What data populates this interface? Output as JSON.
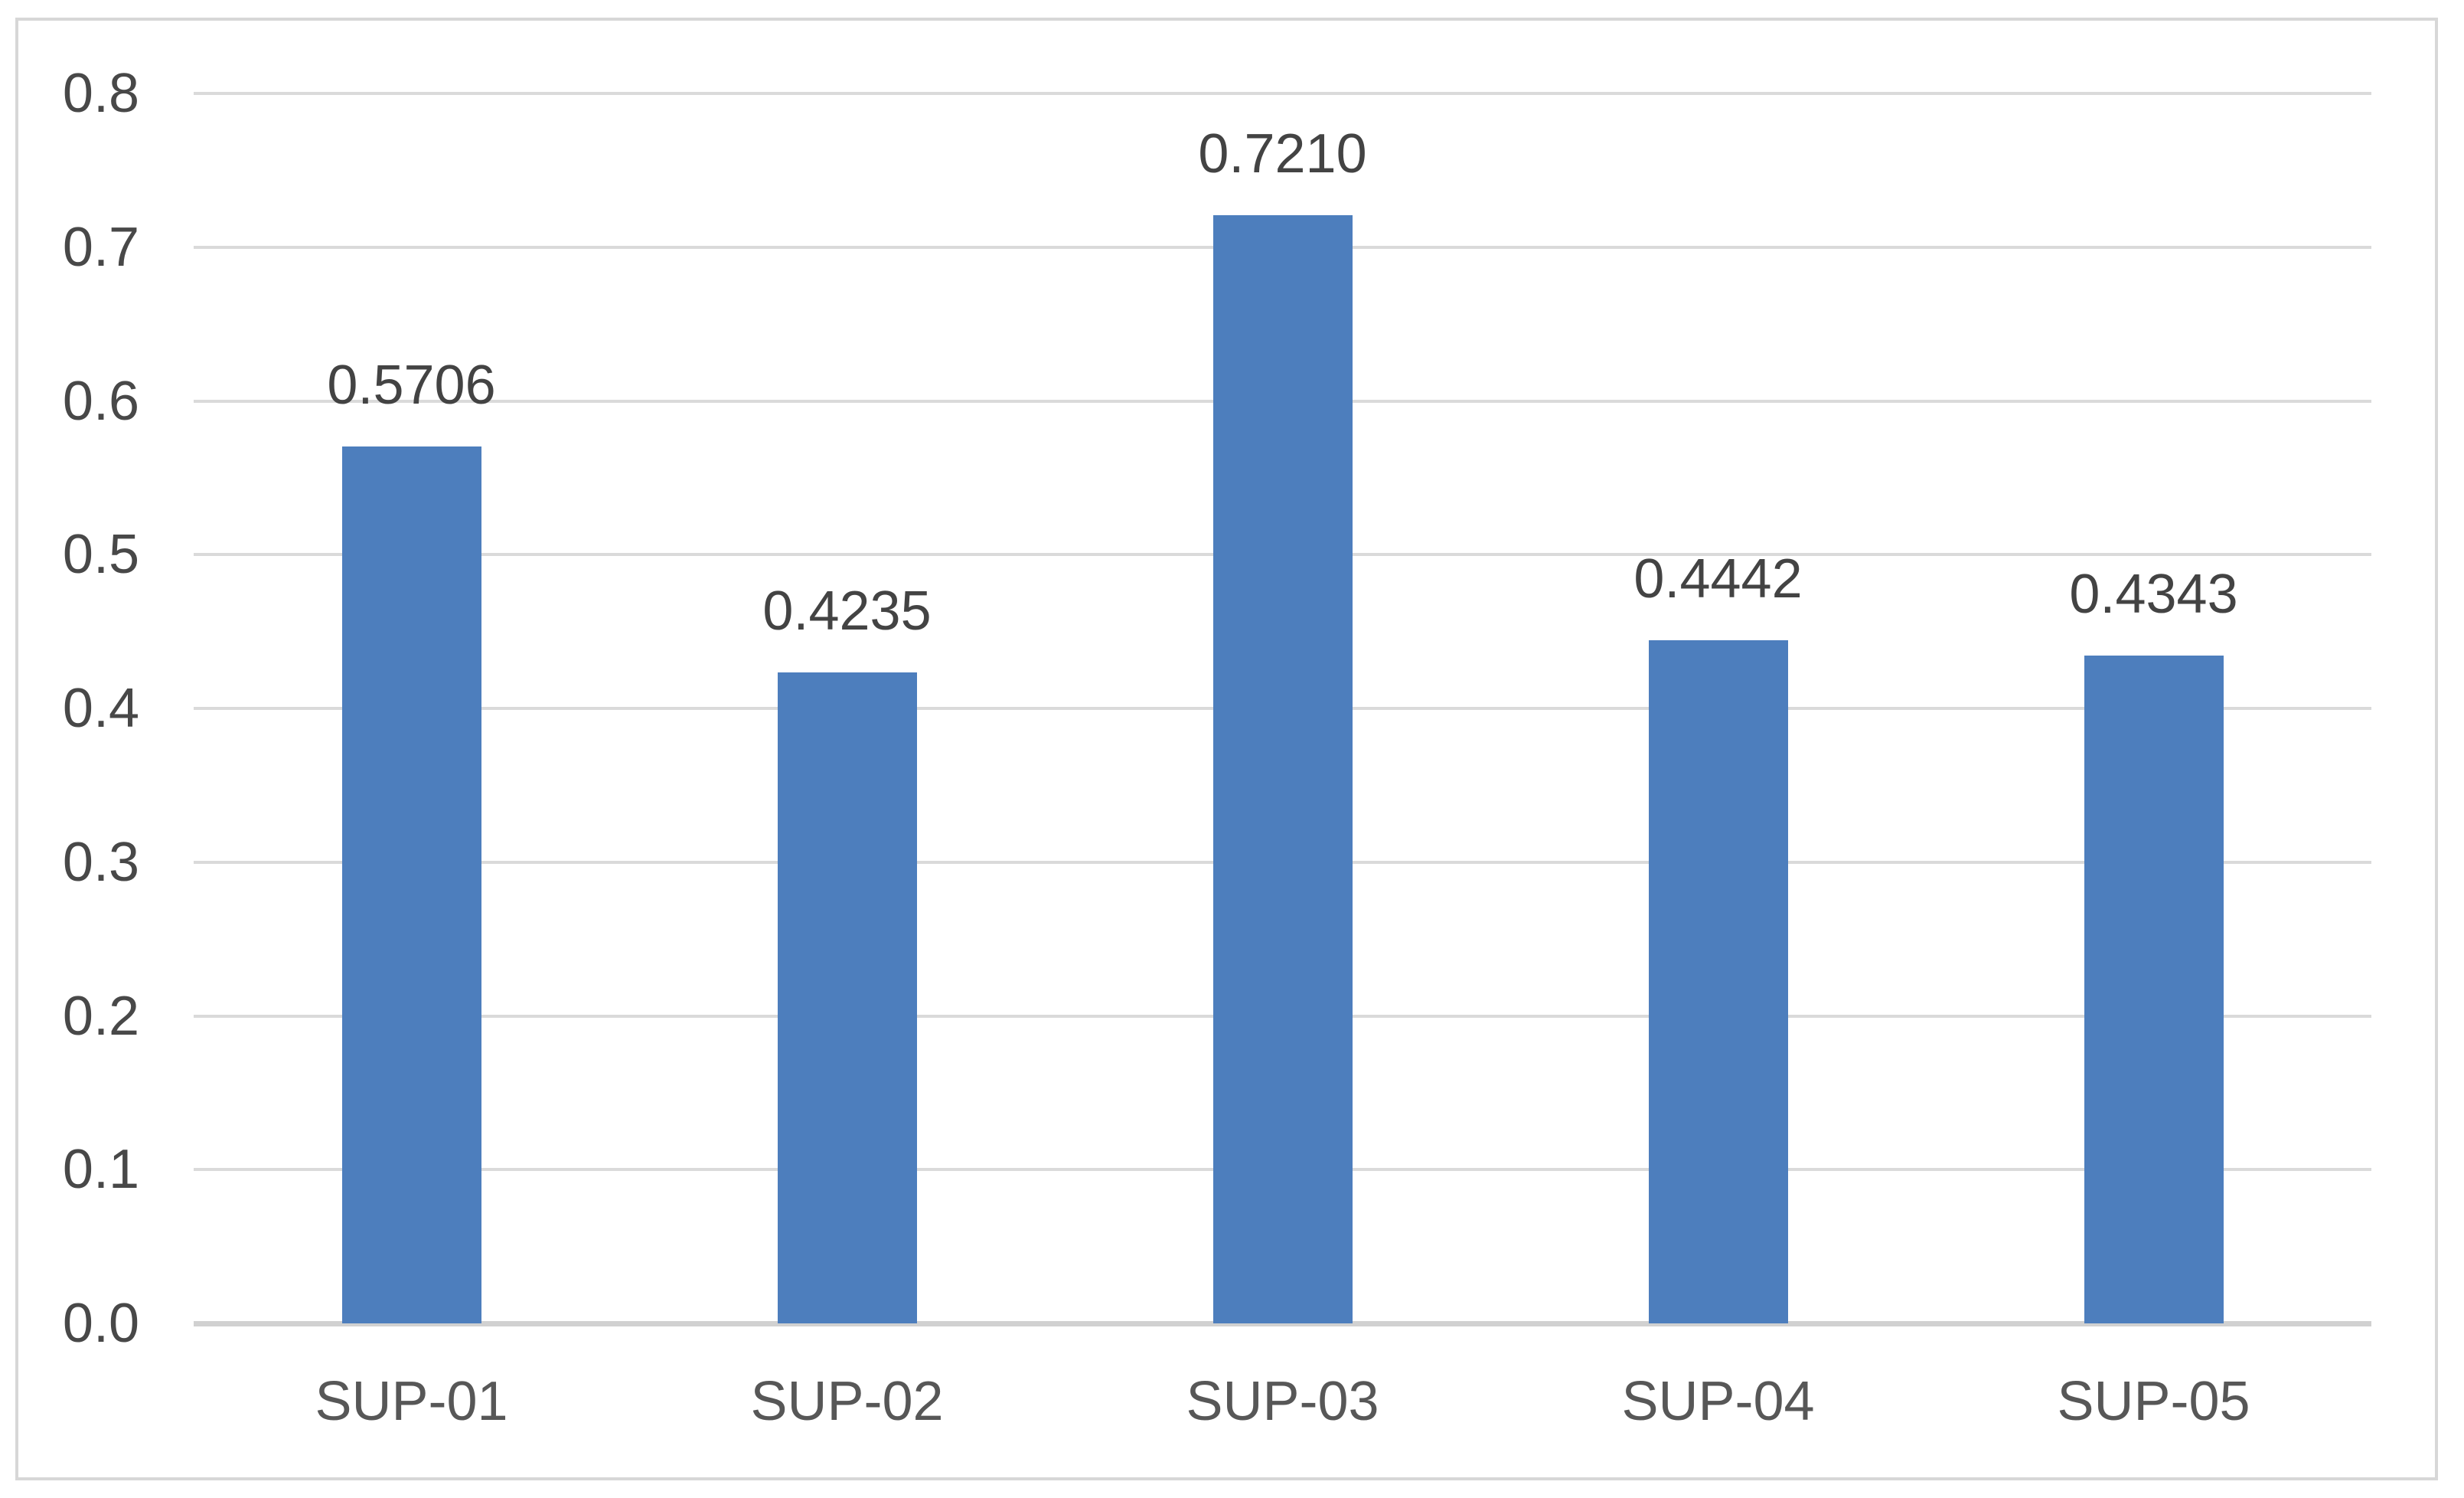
{
  "chart_data": {
    "type": "bar",
    "title": "",
    "xlabel": "",
    "ylabel": "",
    "categories": [
      "SUP-01",
      "SUP-02",
      "SUP-03",
      "SUP-04",
      "SUP-05"
    ],
    "values": [
      0.5706,
      0.4235,
      0.721,
      0.4442,
      0.4343
    ],
    "value_labels": [
      "0.5706",
      "0.4235",
      "0.7210",
      "0.4442",
      "0.4343"
    ],
    "ylim": [
      0.0,
      0.8
    ],
    "ytick_step": 0.1,
    "yticks": [
      "0.0",
      "0.1",
      "0.2",
      "0.3",
      "0.4",
      "0.5",
      "0.6",
      "0.7",
      "0.8"
    ],
    "grid": "horizontal-on",
    "legend": "none",
    "colors": {
      "bar": "#4d7ebd",
      "gridline": "#dadada",
      "axis_line": "#d1d1d1",
      "frame_border": "#d7d7d7",
      "background": "#ffffff",
      "tick_label": "#484848",
      "data_label": "#434343",
      "category_label": "#575757"
    }
  }
}
